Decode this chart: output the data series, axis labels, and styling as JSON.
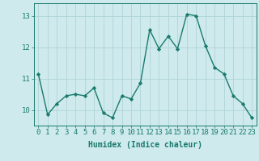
{
  "x": [
    0,
    1,
    2,
    3,
    4,
    5,
    6,
    7,
    8,
    9,
    10,
    11,
    12,
    13,
    14,
    15,
    16,
    17,
    18,
    19,
    20,
    21,
    22,
    23
  ],
  "y": [
    11.15,
    9.85,
    10.2,
    10.45,
    10.5,
    10.45,
    10.7,
    9.9,
    9.75,
    10.45,
    10.35,
    10.85,
    12.55,
    11.95,
    12.35,
    11.95,
    13.05,
    13.0,
    12.05,
    11.35,
    11.15,
    10.45,
    10.2,
    9.75
  ],
  "line_color": "#1a7a6e",
  "marker": "D",
  "markersize": 2.2,
  "linewidth": 1.0,
  "bg_color": "#ceeaec",
  "grid_color": "#b0d4d8",
  "xlabel": "Humidex (Indice chaleur)",
  "xlim": [
    -0.5,
    23.5
  ],
  "ylim": [
    9.5,
    13.4
  ],
  "yticks": [
    10,
    11,
    12,
    13
  ],
  "xticks": [
    0,
    1,
    2,
    3,
    4,
    5,
    6,
    7,
    8,
    9,
    10,
    11,
    12,
    13,
    14,
    15,
    16,
    17,
    18,
    19,
    20,
    21,
    22,
    23
  ],
  "xlabel_fontsize": 7,
  "tick_fontsize": 6.5
}
